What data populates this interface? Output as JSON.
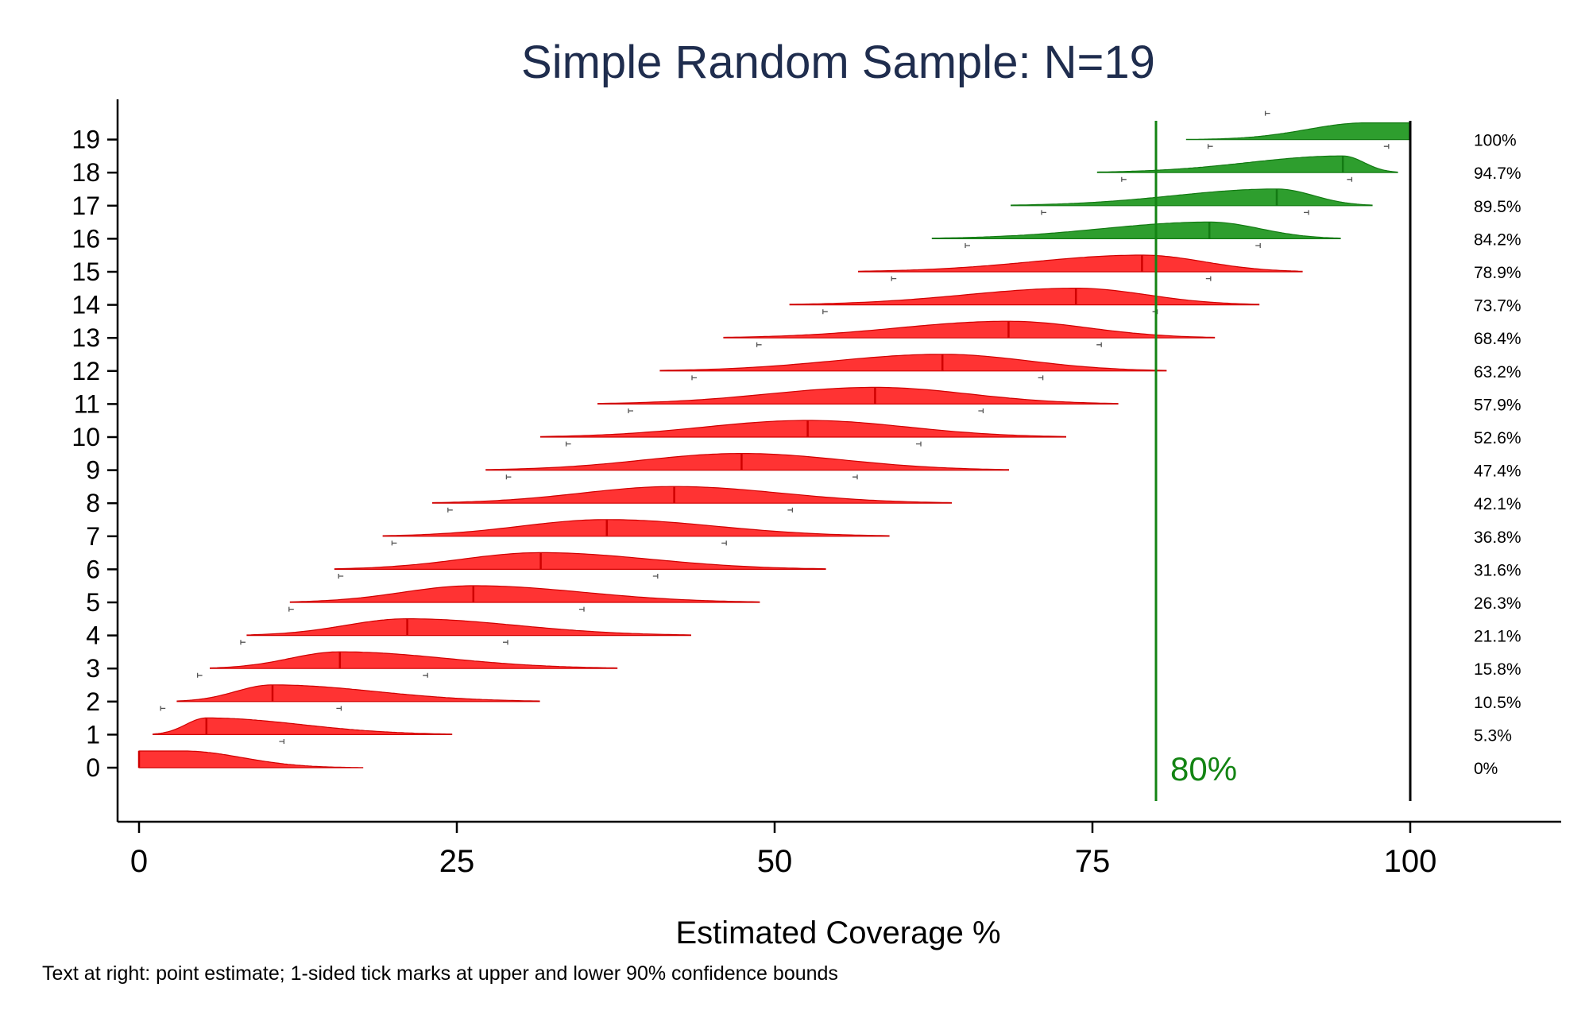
{
  "chart_data": {
    "type": "area",
    "title": "Simple Random Sample: N=19",
    "xlabel": "Estimated Coverage %",
    "ylabel": "",
    "note": "Text at right: point estimate; 1-sided tick marks at upper and lower 90% confidence bounds",
    "xlim": [
      0,
      100
    ],
    "x_ticks": [
      "0",
      "25",
      "50",
      "75",
      "100"
    ],
    "x_tick_values": [
      0,
      25,
      50,
      75,
      100
    ],
    "y_ticks": [
      "0",
      "1",
      "2",
      "3",
      "4",
      "5",
      "6",
      "7",
      "8",
      "9",
      "10",
      "11",
      "12",
      "13",
      "14",
      "15",
      "16",
      "17",
      "18",
      "19"
    ],
    "threshold": {
      "value": 80,
      "label": "80%",
      "color": "#138413"
    },
    "upper_limit_line": 100,
    "colors": {
      "below": "#ff3333",
      "above": "#2e9e2e",
      "below_edge": "#d00000",
      "above_edge": "#137a13"
    },
    "series": [
      {
        "n": 0,
        "estimate": 0,
        "lcb": 0,
        "ucb": 11.4,
        "min": 0,
        "max": 17.6,
        "label": "0%"
      },
      {
        "n": 1,
        "estimate": 5.3,
        "lcb": 1.7,
        "ucb": 15.9,
        "min": 1.1,
        "max": 24.6,
        "label": "5.3%"
      },
      {
        "n": 2,
        "estimate": 10.5,
        "lcb": 4.6,
        "ucb": 22.7,
        "min": 3.0,
        "max": 31.5,
        "label": "10.5%"
      },
      {
        "n": 3,
        "estimate": 15.8,
        "lcb": 8.0,
        "ucb": 29.0,
        "min": 5.6,
        "max": 37.6,
        "label": "15.8%"
      },
      {
        "n": 4,
        "estimate": 21.1,
        "lcb": 11.8,
        "ucb": 35.0,
        "min": 8.5,
        "max": 43.4,
        "label": "21.1%"
      },
      {
        "n": 5,
        "estimate": 26.3,
        "lcb": 15.7,
        "ucb": 40.8,
        "min": 11.9,
        "max": 48.8,
        "label": "26.3%"
      },
      {
        "n": 6,
        "estimate": 31.6,
        "lcb": 19.9,
        "ucb": 46.2,
        "min": 15.4,
        "max": 54.0,
        "label": "31.6%"
      },
      {
        "n": 7,
        "estimate": 36.8,
        "lcb": 24.3,
        "ucb": 51.4,
        "min": 19.2,
        "max": 59.0,
        "label": "36.8%"
      },
      {
        "n": 8,
        "estimate": 42.1,
        "lcb": 28.9,
        "ucb": 56.5,
        "min": 23.1,
        "max": 63.9,
        "label": "42.1%"
      },
      {
        "n": 9,
        "estimate": 47.4,
        "lcb": 33.6,
        "ucb": 61.5,
        "min": 27.3,
        "max": 68.4,
        "label": "47.4%"
      },
      {
        "n": 10,
        "estimate": 52.6,
        "lcb": 38.5,
        "ucb": 66.4,
        "min": 31.6,
        "max": 72.9,
        "label": "52.6%"
      },
      {
        "n": 11,
        "estimate": 57.9,
        "lcb": 43.5,
        "ucb": 71.1,
        "min": 36.1,
        "max": 77.0,
        "label": "57.9%"
      },
      {
        "n": 12,
        "estimate": 63.2,
        "lcb": 48.6,
        "ucb": 75.7,
        "min": 41.0,
        "max": 80.8,
        "label": "63.2%"
      },
      {
        "n": 13,
        "estimate": 68.4,
        "lcb": 53.8,
        "ucb": 80.1,
        "min": 46.0,
        "max": 84.6,
        "label": "68.4%"
      },
      {
        "n": 14,
        "estimate": 73.7,
        "lcb": 59.2,
        "ucb": 84.3,
        "min": 51.2,
        "max": 88.1,
        "label": "73.7%"
      },
      {
        "n": 15,
        "estimate": 78.9,
        "lcb": 65.0,
        "ucb": 88.2,
        "min": 56.6,
        "max": 91.5,
        "label": "78.9%"
      },
      {
        "n": 16,
        "estimate": 84.2,
        "lcb": 71.0,
        "ucb": 92.0,
        "min": 62.4,
        "max": 94.5,
        "label": "84.2%"
      },
      {
        "n": 17,
        "estimate": 89.5,
        "lcb": 77.3,
        "ucb": 95.4,
        "min": 68.6,
        "max": 97.0,
        "label": "89.5%"
      },
      {
        "n": 18,
        "estimate": 94.7,
        "lcb": 84.1,
        "ucb": 98.3,
        "min": 75.4,
        "max": 99.0,
        "label": "94.7%"
      },
      {
        "n": 19,
        "estimate": 100,
        "lcb": 88.6,
        "ucb": 100,
        "min": 82.4,
        "max": 100,
        "label": "100%"
      }
    ]
  }
}
